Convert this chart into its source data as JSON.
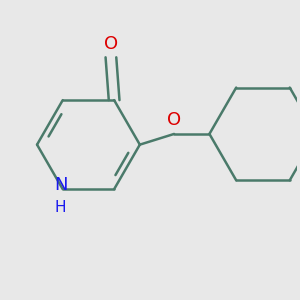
{
  "background_color": "#e8e8e8",
  "bond_color": "#4a7a6a",
  "atom_colors": {
    "O_carbonyl": "#dd0000",
    "O_ether": "#dd0000",
    "N": "#1a1aee",
    "H": "#1a1aee"
  },
  "line_width": 1.8,
  "font_size": 13,
  "figsize": [
    3.0,
    3.0
  ],
  "dpi": 100
}
